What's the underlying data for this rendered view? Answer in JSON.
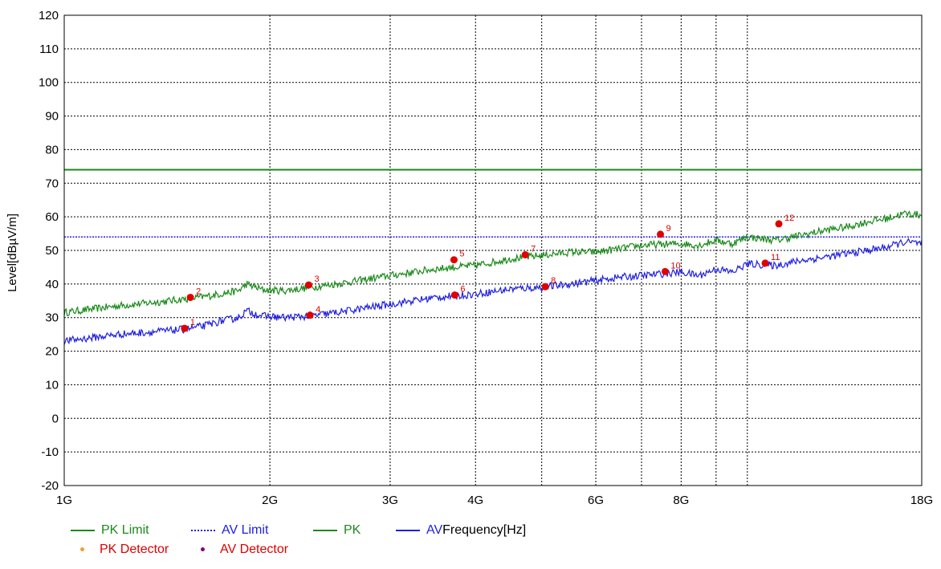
{
  "chart_data": {
    "type": "line",
    "ylabel": "Level[dBµV/m]",
    "xlabel": "Frequency[Hz]",
    "x_scale": "log",
    "xlim": [
      1000000000,
      18000000000
    ],
    "ylim": [
      -20,
      120
    ],
    "yticks": [
      120,
      110,
      100,
      90,
      80,
      70,
      60,
      50,
      40,
      30,
      20,
      10,
      0,
      -10,
      -20
    ],
    "xticks": [
      {
        "value": 1000000000,
        "label": "1G"
      },
      {
        "value": 2000000000,
        "label": "2G"
      },
      {
        "value": 3000000000,
        "label": "3G"
      },
      {
        "value": 4000000000,
        "label": "4G"
      },
      {
        "value": 6000000000,
        "label": "6G"
      },
      {
        "value": 8000000000,
        "label": "8G"
      },
      {
        "value": 18000000000,
        "label": "18G"
      }
    ],
    "grid_lines_x": [
      2000000000,
      3000000000,
      4000000000,
      5000000000,
      6000000000,
      7000000000,
      8000000000,
      9000000000,
      10000000000
    ],
    "grid": true,
    "legend_position": "bottom",
    "series": [
      {
        "name": "PK Limit",
        "style": "solid",
        "color": "#1a8a1a",
        "points": [
          [
            1000000000,
            74
          ],
          [
            18000000000,
            74
          ]
        ]
      },
      {
        "name": "AV Limit",
        "style": "dotted",
        "color": "#2020e0",
        "points": [
          [
            1000000000,
            54
          ],
          [
            18000000000,
            54
          ]
        ]
      },
      {
        "name": "PK",
        "style": "solid",
        "color": "#1a8a1a",
        "points": [
          [
            1000000000,
            31.5
          ],
          [
            1200000000,
            33.5
          ],
          [
            1400000000,
            34.8
          ],
          [
            1600000000,
            36.2
          ],
          [
            1800000000,
            38.0
          ],
          [
            1850000000,
            40.0
          ],
          [
            1950000000,
            38.3
          ],
          [
            2100000000,
            38.0
          ],
          [
            2300000000,
            39.0
          ],
          [
            2600000000,
            40.5
          ],
          [
            3000000000,
            42.5
          ],
          [
            3500000000,
            44.5
          ],
          [
            4000000000,
            45.5
          ],
          [
            4500000000,
            47.5
          ],
          [
            5000000000,
            48.5
          ],
          [
            5500000000,
            49.5
          ],
          [
            6000000000,
            49.5
          ],
          [
            6500000000,
            50.5
          ],
          [
            7000000000,
            51.5
          ],
          [
            7500000000,
            51.8
          ],
          [
            8000000000,
            52.0
          ],
          [
            8500000000,
            51.5
          ],
          [
            9000000000,
            53.0
          ],
          [
            9500000000,
            52.0
          ],
          [
            10000000000,
            54.0
          ],
          [
            11000000000,
            53.0
          ],
          [
            12000000000,
            54.5
          ],
          [
            13000000000,
            56.0
          ],
          [
            14000000000,
            57.0
          ],
          [
            15000000000,
            58.5
          ],
          [
            16000000000,
            59.5
          ],
          [
            17000000000,
            61.0
          ],
          [
            18000000000,
            60.5
          ]
        ]
      },
      {
        "name": "AV",
        "style": "solid",
        "color": "#2020e0",
        "points": [
          [
            1000000000,
            23.0
          ],
          [
            1200000000,
            25.0
          ],
          [
            1400000000,
            26.0
          ],
          [
            1500000000,
            26.5
          ],
          [
            1600000000,
            27.5
          ],
          [
            1700000000,
            29.0
          ],
          [
            1800000000,
            30.0
          ],
          [
            1850000000,
            32.0
          ],
          [
            1950000000,
            30.5
          ],
          [
            2100000000,
            30.0
          ],
          [
            2300000000,
            30.5
          ],
          [
            2600000000,
            32.0
          ],
          [
            3000000000,
            34.0
          ],
          [
            3500000000,
            36.0
          ],
          [
            4000000000,
            37.0
          ],
          [
            4500000000,
            38.5
          ],
          [
            5000000000,
            39.0
          ],
          [
            5500000000,
            40.0
          ],
          [
            6000000000,
            41.0
          ],
          [
            6500000000,
            42.0
          ],
          [
            7000000000,
            42.5
          ],
          [
            8000000000,
            43.5
          ],
          [
            8500000000,
            42.5
          ],
          [
            9000000000,
            44.5
          ],
          [
            9500000000,
            43.5
          ],
          [
            10000000000,
            46.0
          ],
          [
            11000000000,
            45.5
          ],
          [
            12000000000,
            47.0
          ],
          [
            13000000000,
            48.0
          ],
          [
            14000000000,
            49.0
          ],
          [
            15000000000,
            50.0
          ],
          [
            16000000000,
            51.0
          ],
          [
            17000000000,
            52.5
          ],
          [
            18000000000,
            52.0
          ]
        ]
      }
    ],
    "markers": [
      {
        "label": "1",
        "x": 1500000000,
        "y": 26.8
      },
      {
        "label": "2",
        "x": 1530000000,
        "y": 36.0
      },
      {
        "label": "3",
        "x": 2280000000,
        "y": 39.7
      },
      {
        "label": "4",
        "x": 2290000000,
        "y": 30.7
      },
      {
        "label": "5",
        "x": 3720000000,
        "y": 47.2
      },
      {
        "label": "6",
        "x": 3730000000,
        "y": 36.7
      },
      {
        "label": "7",
        "x": 4730000000,
        "y": 48.7
      },
      {
        "label": "8",
        "x": 5060000000,
        "y": 39.2
      },
      {
        "label": "9",
        "x": 7460000000,
        "y": 54.8
      },
      {
        "label": "10",
        "x": 7580000000,
        "y": 43.7
      },
      {
        "label": "11",
        "x": 10620000000,
        "y": 46.2
      },
      {
        "label": "12",
        "x": 11120000000,
        "y": 57.9
      }
    ]
  },
  "legend": [
    {
      "label": "PK Limit",
      "kind": "line",
      "style": "solid",
      "color": "#1a8a1a",
      "text_color": "#1a8a1a"
    },
    {
      "label": "AV Limit",
      "kind": "line",
      "style": "dotted",
      "color": "#2020e0",
      "text_color": "#2020e0"
    },
    {
      "label": "PK",
      "kind": "line",
      "style": "solid",
      "color": "#1a8a1a",
      "text_color": "#1a8a1a"
    },
    {
      "label": "AV",
      "kind": "line",
      "style": "solid",
      "color": "#2020e0",
      "text_color": "#2020e0"
    },
    {
      "label": "PK Detector",
      "kind": "dot",
      "color": "#f0a030",
      "text_color": "#e00000"
    },
    {
      "label": "AV Detector",
      "kind": "dot",
      "color": "#800080",
      "text_color": "#e00000"
    }
  ],
  "colors": {
    "marker": "#e00000",
    "grid": "#000000"
  }
}
